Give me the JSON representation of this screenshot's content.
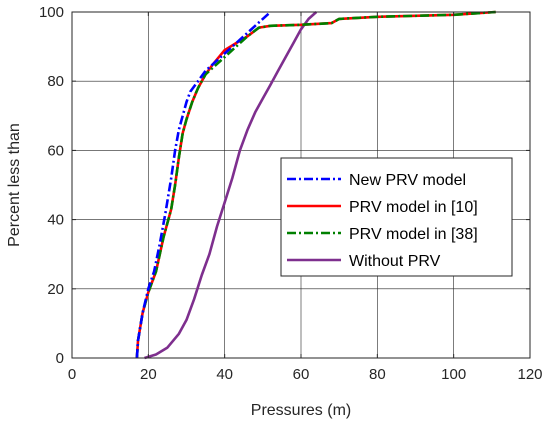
{
  "chart_data": {
    "type": "line",
    "title": "",
    "xlabel": "Pressures (m)",
    "ylabel": "Percent less than",
    "xlim": [
      0,
      120
    ],
    "ylim": [
      0,
      100
    ],
    "xticks": [
      0,
      20,
      40,
      60,
      80,
      100,
      120
    ],
    "yticks": [
      0,
      20,
      40,
      60,
      80,
      100
    ],
    "grid": true,
    "legend_position": "right",
    "series": [
      {
        "name": "New PRV model",
        "color": "#0000ff",
        "dash": "dash-dot",
        "points": [
          [
            17.0,
            0
          ],
          [
            17.3,
            5
          ],
          [
            18.5,
            13
          ],
          [
            20,
            20
          ],
          [
            21.5,
            25
          ],
          [
            23,
            33
          ],
          [
            24.5,
            42
          ],
          [
            26,
            52
          ],
          [
            27,
            60
          ],
          [
            28,
            66
          ],
          [
            29,
            70
          ],
          [
            30,
            74
          ],
          [
            31,
            77
          ],
          [
            33,
            80
          ],
          [
            35,
            83
          ],
          [
            37,
            85
          ],
          [
            39,
            87
          ],
          [
            42,
            90
          ],
          [
            45,
            93
          ],
          [
            48,
            96
          ],
          [
            50,
            98
          ],
          [
            52,
            100
          ]
        ]
      },
      {
        "name": "PRV model in [10]",
        "color": "#ff0000",
        "dash": "solid",
        "points": [
          [
            17.0,
            0
          ],
          [
            17.3,
            5
          ],
          [
            18.5,
            13
          ],
          [
            20,
            19
          ],
          [
            22,
            25
          ],
          [
            24,
            35
          ],
          [
            26,
            43
          ],
          [
            27,
            50
          ],
          [
            28,
            58
          ],
          [
            29,
            65
          ],
          [
            30,
            69
          ],
          [
            31.5,
            74
          ],
          [
            33,
            78
          ],
          [
            35,
            82
          ],
          [
            37,
            85
          ],
          [
            40,
            89
          ],
          [
            43,
            91
          ],
          [
            46,
            93
          ],
          [
            49,
            95.5
          ],
          [
            52,
            96
          ],
          [
            60,
            96.3
          ],
          [
            68,
            96.8
          ],
          [
            70,
            98
          ],
          [
            80,
            98.6
          ],
          [
            100,
            99.2
          ],
          [
            111,
            100
          ]
        ]
      },
      {
        "name": "PRV model in [38]",
        "color": "#008000",
        "dash": "dash-dot",
        "points": [
          [
            17.0,
            0
          ],
          [
            17.3,
            5
          ],
          [
            18.5,
            13
          ],
          [
            20,
            19
          ],
          [
            22,
            25
          ],
          [
            24,
            35
          ],
          [
            26,
            43
          ],
          [
            27,
            50
          ],
          [
            28,
            58
          ],
          [
            29,
            65
          ],
          [
            30,
            69
          ],
          [
            31.5,
            74
          ],
          [
            33,
            78
          ],
          [
            35,
            82
          ],
          [
            37,
            84
          ],
          [
            40,
            87
          ],
          [
            43,
            90
          ],
          [
            46,
            93
          ],
          [
            49,
            95.5
          ],
          [
            52,
            96
          ],
          [
            60,
            96.3
          ],
          [
            68,
            96.8
          ],
          [
            70,
            98
          ],
          [
            80,
            98.6
          ],
          [
            100,
            99.2
          ],
          [
            111,
            100
          ]
        ]
      },
      {
        "name": "Without PRV",
        "color": "#7e2f8e",
        "dash": "solid",
        "points": [
          [
            19,
            0
          ],
          [
            22,
            1
          ],
          [
            25,
            3
          ],
          [
            28,
            7
          ],
          [
            30,
            11
          ],
          [
            32,
            17
          ],
          [
            34,
            24
          ],
          [
            36,
            30
          ],
          [
            38,
            38
          ],
          [
            40,
            45
          ],
          [
            42,
            52
          ],
          [
            44,
            60
          ],
          [
            46,
            66
          ],
          [
            48,
            71
          ],
          [
            50,
            75
          ],
          [
            52,
            79
          ],
          [
            54,
            83
          ],
          [
            56,
            87
          ],
          [
            58,
            91
          ],
          [
            60,
            95
          ],
          [
            62,
            98
          ],
          [
            64,
            100
          ]
        ]
      }
    ]
  }
}
